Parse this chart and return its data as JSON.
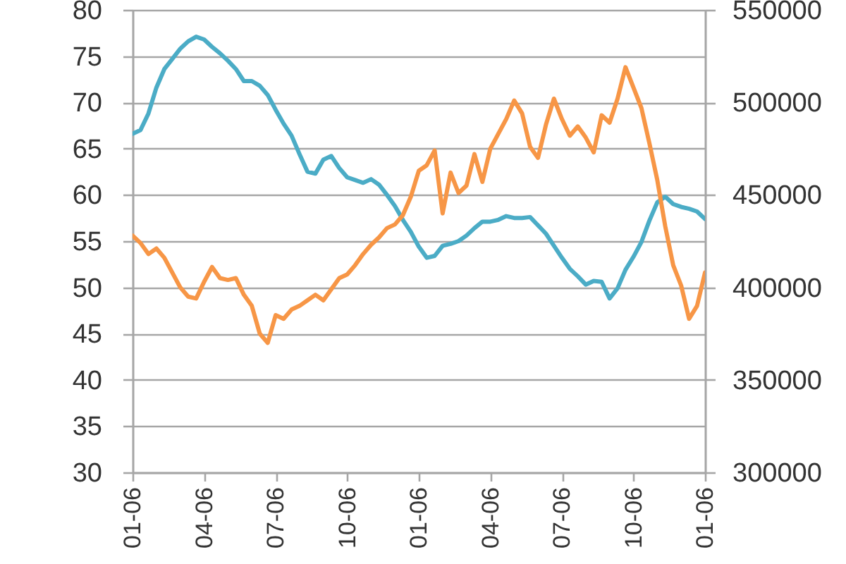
{
  "chart_data": {
    "type": "line",
    "line_style": "solid",
    "grid": "y",
    "categories": [
      "01-06",
      null,
      null,
      null,
      null,
      null,
      null,
      null,
      null,
      "04-06",
      null,
      null,
      null,
      null,
      null,
      null,
      null,
      null,
      "07-06",
      null,
      null,
      null,
      null,
      null,
      null,
      null,
      null,
      "10-06",
      null,
      null,
      null,
      null,
      null,
      null,
      null,
      null,
      "01-06",
      null,
      null,
      null,
      null,
      null,
      null,
      null,
      null,
      "04-06",
      null,
      null,
      null,
      null,
      null,
      null,
      null,
      null,
      "07-06",
      null,
      null,
      null,
      null,
      null,
      null,
      null,
      null,
      "10-06",
      null,
      null,
      null,
      null,
      null,
      null,
      null,
      null,
      "01-06"
    ],
    "ylim": [
      30,
      80
    ],
    "yticks": [
      30,
      35,
      40,
      45,
      50,
      55,
      60,
      65,
      70,
      75,
      80
    ],
    "y2lim": [
      300000,
      550000
    ],
    "y2ticks": [
      300000,
      350000,
      400000,
      450000,
      500000,
      550000
    ],
    "series": [
      {
        "color": "#4bacc6",
        "values": [
          66.6,
          67.0,
          68.8,
          71.6,
          73.6,
          74.7,
          75.8,
          76.6,
          77.1,
          76.8,
          76.0,
          75.3,
          74.5,
          73.6,
          72.3,
          72.3,
          71.8,
          70.8,
          69.2,
          67.7,
          66.4,
          64.4,
          62.5,
          62.3,
          63.8,
          64.2,
          62.9,
          61.9,
          61.6,
          61.3,
          61.7,
          61.1,
          60.0,
          58.8,
          57.3,
          56.0,
          54.4,
          53.2,
          53.4,
          54.5,
          54.7,
          55.0,
          55.6,
          56.4,
          57.1,
          57.1,
          57.3,
          57.7,
          57.5,
          57.5,
          57.6,
          56.7,
          55.8,
          54.5,
          53.2,
          52.0,
          51.2,
          50.3,
          50.7,
          50.6,
          48.8,
          49.9,
          51.9,
          53.3,
          54.9,
          57.2,
          59.2,
          59.8,
          59.0,
          58.7,
          58.5,
          58.2,
          57.4
        ]
      },
      {
        "color": "#f79646",
        "axis": "y2",
        "values": [
          428000,
          424000,
          418000,
          421000,
          416000,
          408000,
          400000,
          395000,
          394000,
          403000,
          411000,
          405000,
          404000,
          405000,
          396000,
          390000,
          375000,
          370000,
          385000,
          383000,
          388000,
          390000,
          393000,
          396000,
          393000,
          399000,
          405000,
          407000,
          412000,
          418000,
          423000,
          427000,
          432000,
          434000,
          439000,
          449000,
          463000,
          466000,
          474000,
          440000,
          462000,
          451000,
          455000,
          472000,
          457000,
          475000,
          483000,
          491000,
          501000,
          494000,
          476000,
          470000,
          488000,
          502000,
          491000,
          482000,
          487000,
          481000,
          473000,
          493000,
          489000,
          502000,
          519000,
          508000,
          497000,
          478000,
          458000,
          433000,
          412000,
          401000,
          383000,
          390000,
          408000
        ]
      }
    ]
  }
}
